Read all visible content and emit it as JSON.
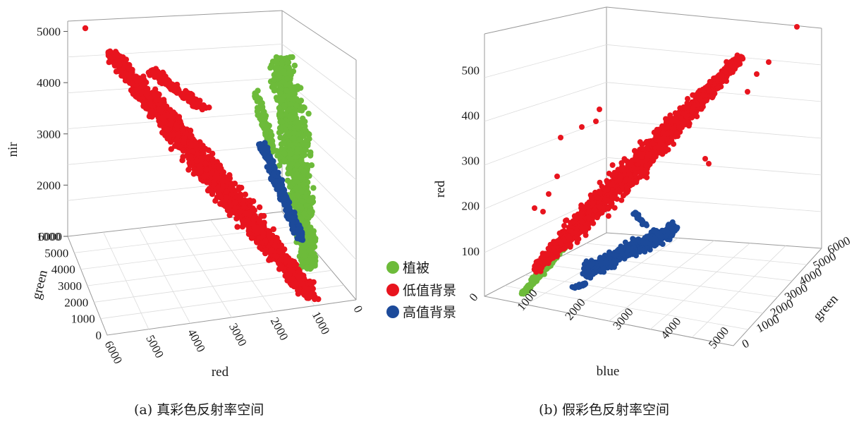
{
  "chart_data": [
    {
      "type": "scatter",
      "caption": "(a) 真彩色反射率空间",
      "axes": {
        "x": {
          "label": "red",
          "ticks": [
            "6000",
            "5000",
            "4000",
            "3000",
            "2000",
            "1000",
            "0"
          ]
        },
        "y": {
          "label": "green",
          "ticks": [
            "0",
            "1000",
            "2000",
            "3000",
            "4000",
            "5000",
            "6000"
          ]
        },
        "z": {
          "label": "nir",
          "ticks": [
            "1000",
            "2000",
            "3000",
            "4000",
            "5000"
          ],
          "range": [
            1000,
            5200
          ]
        }
      },
      "series": [
        {
          "name": "植被",
          "color": "#6dbb3a",
          "clusters": [
            {
              "red": [
                1000,
                2200
              ],
              "green": [
                2000,
                5500
              ],
              "nir": [
                1500,
                4500
              ]
            }
          ]
        },
        {
          "name": "低值背景",
          "color": "#e8141e",
          "clusters": [
            {
              "red": [
                1500,
                5600
              ],
              "green": [
                500,
                5000
              ],
              "nir": [
                1200,
                4600
              ]
            }
          ]
        },
        {
          "name": "高值背景",
          "color": "#1c4a9a",
          "clusters": [
            {
              "red": [
                1500,
                2800
              ],
              "green": [
                2500,
                4500
              ],
              "nir": [
                1800,
                2800
              ]
            }
          ]
        }
      ]
    },
    {
      "type": "scatter",
      "caption": "(b) 假彩色反射率空间",
      "axes": {
        "x": {
          "label": "blue",
          "ticks": [
            "0",
            "1000",
            "2000",
            "3000",
            "4000",
            "5000"
          ]
        },
        "y": {
          "label": "green",
          "ticks": [
            "0",
            "1000",
            "2000",
            "3000",
            "4000",
            "5000",
            "6000"
          ]
        },
        "z": {
          "label": "red",
          "ticks": [
            "100",
            "200",
            "300",
            "400",
            "500"
          ],
          "range": [
            0,
            580
          ]
        }
      },
      "series": [
        {
          "name": "植被",
          "color": "#6dbb3a",
          "clusters": [
            {
              "blue": [
                200,
                1000
              ],
              "green": [
                0,
                1000
              ],
              "red": [
                20,
                150
              ]
            }
          ]
        },
        {
          "name": "低值背景",
          "color": "#e8141e",
          "clusters": [
            {
              "blue": [
                800,
                5500
              ],
              "green": [
                500,
                6000
              ],
              "red": [
                100,
                560
              ]
            }
          ]
        },
        {
          "name": "高值背景",
          "color": "#1c4a9a",
          "clusters": [
            {
              "blue": [
                2000,
                3200
              ],
              "green": [
                2000,
                4500
              ],
              "red": [
                150,
                320
              ]
            }
          ]
        }
      ]
    }
  ],
  "legend": {
    "items": [
      {
        "label": "植被",
        "color": "#6dbb3a"
      },
      {
        "label": "低值背景",
        "color": "#e8141e"
      },
      {
        "label": "高值背景",
        "color": "#1c4a9a"
      }
    ]
  }
}
